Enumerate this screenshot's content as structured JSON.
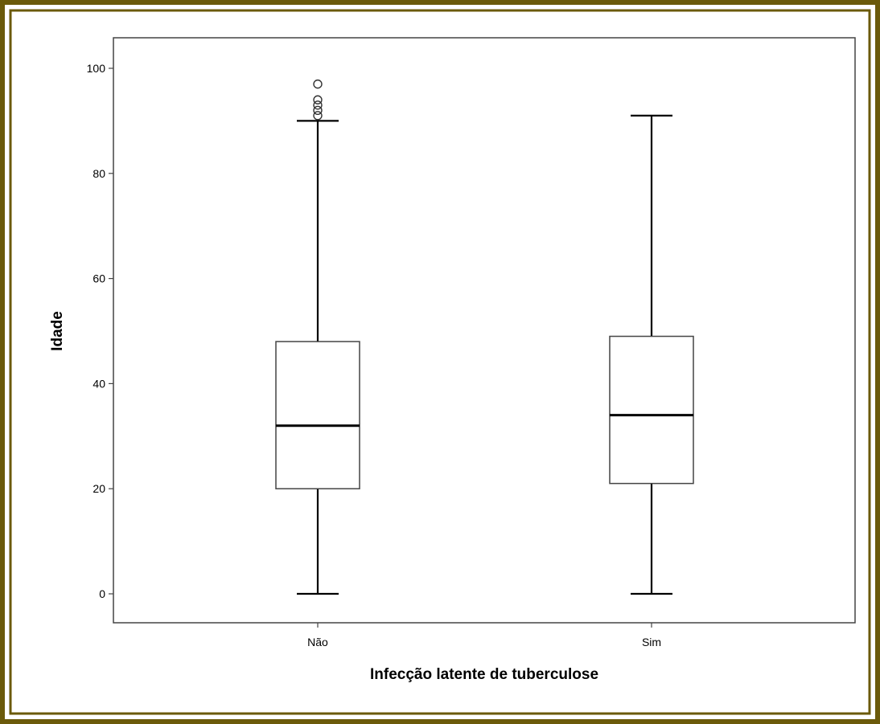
{
  "chart_data": {
    "type": "boxplot",
    "xlabel": "Infecção latente de tuberculose",
    "ylabel": "Idade",
    "ylim": [
      -5.5,
      106
    ],
    "y_ticks": [
      0,
      20,
      40,
      60,
      80,
      100
    ],
    "y_tick_labels": [
      "0",
      "20",
      "40",
      "60",
      "80",
      "100"
    ],
    "categories": [
      "Não",
      "Sim"
    ],
    "boxes": [
      {
        "category": "Não",
        "min": 0,
        "q1": 20,
        "median": 32,
        "q3": 48,
        "max": 90,
        "outliers": [
          91,
          92,
          93,
          94,
          97
        ]
      },
      {
        "category": "Sim",
        "min": 0,
        "q1": 21,
        "median": 34,
        "q3": 49,
        "max": 91,
        "outliers": []
      }
    ],
    "grid": false,
    "legend": "none"
  },
  "colors": {
    "frame": "#6b5a0a",
    "frame_inner": "#8a7814",
    "plot_border": "#444444",
    "marks": "#000000"
  }
}
